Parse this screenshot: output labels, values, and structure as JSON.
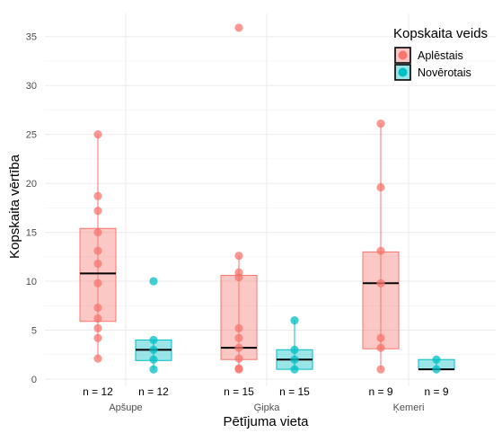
{
  "chart_data": {
    "type": "box",
    "title": "",
    "xlabel": "Pētījuma vieta",
    "ylabel": "Kopskaita vērtība",
    "ylim": [
      0,
      37
    ],
    "yticks": [
      0,
      5,
      10,
      15,
      20,
      25,
      30,
      35
    ],
    "grid": true,
    "legend": {
      "title": "Kopskaita veids",
      "position": "top-right",
      "entries": [
        {
          "label": "Aplēstais",
          "color": "#F8766D"
        },
        {
          "label": "Novērotais",
          "color": "#00BFC4"
        }
      ]
    },
    "categories": [
      "Apšupe",
      "Ģipka",
      "Ķemeri"
    ],
    "series": [
      {
        "name": "Aplēstais",
        "color": "#F8766D",
        "groups": [
          {
            "category": "Apšupe",
            "n_label": "n = 12",
            "q1": 5.9,
            "median": 10.8,
            "q3": 15.4,
            "min": 2.1,
            "max": 25.0,
            "points": [
              25.0,
              18.7,
              17.2,
              15.0,
              13.1,
              11.8,
              9.8,
              7.3,
              6.2,
              5.2,
              4.2,
              2.1
            ]
          },
          {
            "category": "Ģipka",
            "n_label": "n = 15",
            "q1": 2.0,
            "median": 3.2,
            "q3": 10.6,
            "min": 1.0,
            "max": 12.6,
            "points": [
              35.9,
              12.6,
              10.9,
              10.4,
              5.2,
              4.2,
              3.2,
              2.1,
              1.1,
              1.0
            ]
          },
          {
            "category": "Ķemeri",
            "n_label": "n = 9",
            "q1": 3.1,
            "median": 9.8,
            "q3": 13.0,
            "min": 1.0,
            "max": 26.1,
            "points": [
              26.1,
              19.6,
              13.1,
              9.8,
              4.2,
              3.2,
              1.0
            ]
          }
        ]
      },
      {
        "name": "Novērotais",
        "color": "#00BFC4",
        "groups": [
          {
            "category": "Apšupe",
            "n_label": "n = 12",
            "q1": 1.9,
            "median": 3.0,
            "q3": 4.0,
            "min": 1.0,
            "max": 4.0,
            "points": [
              10.0,
              4.0,
              3.0,
              2.0,
              1.0
            ]
          },
          {
            "category": "Ģipka",
            "n_label": "n = 15",
            "q1": 1.0,
            "median": 2.0,
            "q3": 3.0,
            "min": 1.0,
            "max": 6.0,
            "points": [
              6.0,
              3.0,
              2.0,
              1.0
            ]
          },
          {
            "category": "Ķemeri",
            "n_label": "n = 9",
            "q1": 1.0,
            "median": 1.0,
            "q3": 2.0,
            "min": 1.0,
            "max": 2.0,
            "points": [
              2.0,
              1.0
            ]
          }
        ]
      }
    ]
  }
}
